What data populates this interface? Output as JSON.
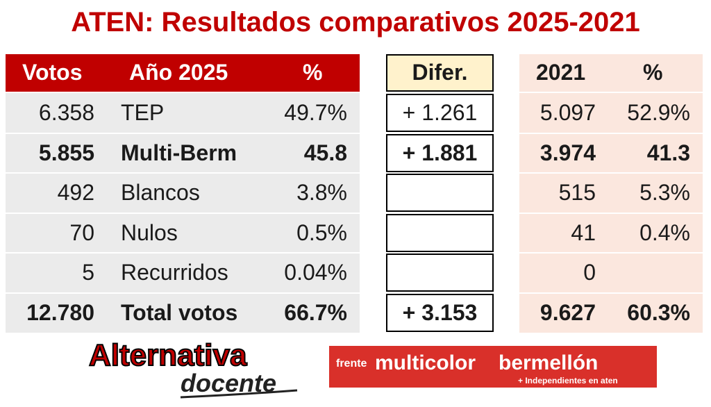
{
  "title": "ATEN: Resultados comparativos 2025-2021",
  "left_header": {
    "votos": "Votos",
    "year": "Año 2025",
    "pct": "%"
  },
  "diff_header": "Difer.",
  "right_header": {
    "year": "2021",
    "pct": "%"
  },
  "rows": [
    {
      "votos": "6.358",
      "name": "TEP",
      "pct": "49.7%",
      "diff": "+ 1.261",
      "votos2021": "5.097",
      "pct2021": "52.9%",
      "bold": false
    },
    {
      "votos": "5.855",
      "name": "Multi-Berm",
      "pct": "45.8",
      "diff": "+ 1.881",
      "votos2021": "3.974",
      "pct2021": "41.3",
      "bold": true
    },
    {
      "votos": "492",
      "name": "Blancos",
      "pct": "3.8%",
      "diff": "",
      "votos2021": "515",
      "pct2021": "5.3%",
      "bold": false
    },
    {
      "votos": "70",
      "name": "Nulos",
      "pct": "0.5%",
      "diff": "",
      "votos2021": "41",
      "pct2021": "0.4%",
      "bold": false
    },
    {
      "votos": "5",
      "name": "Recurridos",
      "pct": "0.04%",
      "diff": "",
      "votos2021": "0",
      "pct2021": "",
      "bold": false
    },
    {
      "votos": "12.780",
      "name": "Total votos",
      "pct": "66.7%",
      "diff": "+ 3.153",
      "votos2021": "9.627",
      "pct2021": "60.3%",
      "bold": true
    }
  ],
  "logos": {
    "alternativa_line1": "Alternativa",
    "alternativa_line2": "docente",
    "fmb_frente": "frente",
    "fmb_multicolor": "multicolor",
    "fmb_bermellon": "bermellón",
    "fmb_sub": "+ Independientes en aten"
  },
  "colors": {
    "title_red": "#c00000",
    "header_red": "#c00000",
    "diff_header_bg": "#fff2cc",
    "right_bg": "#fbe7de",
    "left_bg": "#ebebeb"
  }
}
